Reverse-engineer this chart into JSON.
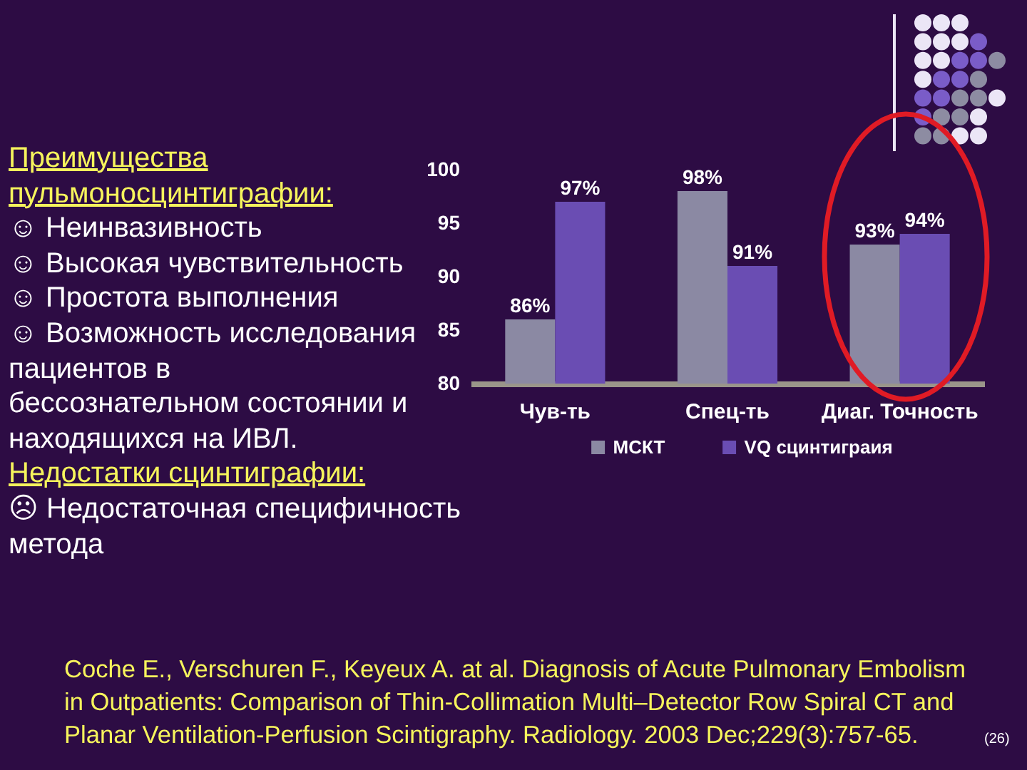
{
  "chart_data": {
    "type": "bar",
    "categories": [
      "Чув-ть",
      "Спец-ть",
      "Диаг. Точность"
    ],
    "series": [
      {
        "name": "МСКТ",
        "color": "#8b89a3",
        "values": [
          86,
          98,
          93
        ],
        "value_labels": [
          "86%",
          "98%",
          "93%"
        ]
      },
      {
        "name": "VQ сцинтиграия",
        "color": "#6a4db3",
        "values": [
          97,
          91,
          94
        ],
        "value_labels": [
          "97%",
          "91%",
          "94%"
        ]
      }
    ],
    "ylim": [
      80,
      100
    ],
    "yticks": [
      80,
      85,
      90,
      95,
      100
    ],
    "legend": "bottom",
    "annotations": [
      "Преимущества\nпульмоносцинтиграфии:",
      "☺ Неинвазивность",
      "☺ Высокая чувствительность",
      "☺ Простота выполнения",
      "☺ Возможность исследования\nпациентов в\nбессознательном состоянии и\nнаходящихся на ИВЛ.",
      "Недостатки сцинтиграфии:",
      "☹ Недостаточная специфичность\nметода",
      "Coche E., Verschuren F., Keyeux A. at al. Diagnosis of Acute Pulmonary Embolism in Outpatients: Comparison of Thin-Collimation Multi–Detector Row Spiral CT and Planar Ventilation-Perfusion Scintigraphy. Radiology. 2003 Dec;229(3):757-65.",
      "(26)"
    ]
  }
}
